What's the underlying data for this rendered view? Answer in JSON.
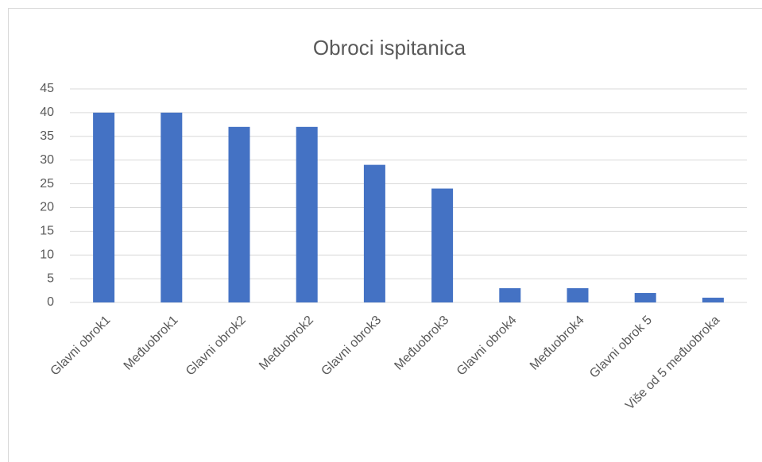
{
  "chart_data": {
    "type": "bar",
    "title": "Obroci ispitanica",
    "categories": [
      "Glavni obrok1",
      "Međuobrok1",
      "Glavni obrok2",
      "Međuobrok2",
      "Glavni obrok3",
      "Međuobrok3",
      "Glavni obrok4",
      "Međuobrok4",
      "Glavni obrok 5",
      "Više od 5 međuobroka"
    ],
    "values": [
      40,
      40,
      37,
      37,
      29,
      24,
      3,
      3,
      2,
      1
    ],
    "color": "#4472c4",
    "ylim": [
      0,
      45
    ],
    "yticks": [
      0,
      5,
      10,
      15,
      20,
      25,
      30,
      35,
      40,
      45
    ],
    "grid": true
  }
}
